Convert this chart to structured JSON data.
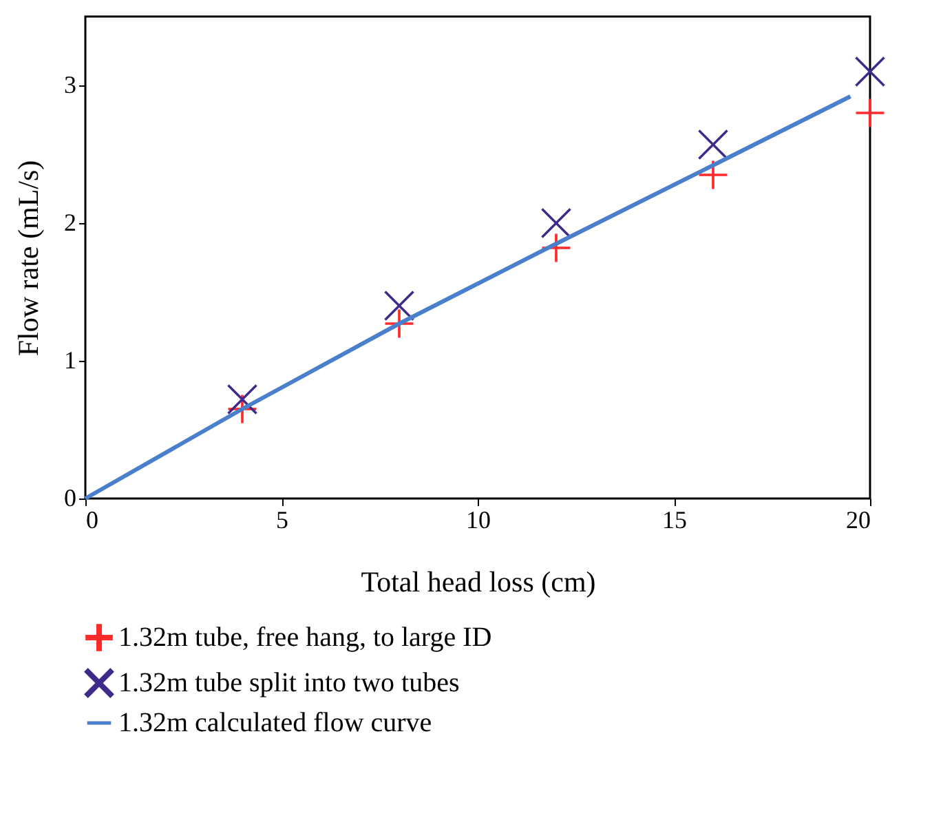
{
  "chart_data": {
    "type": "scatter",
    "xlabel": "Total head loss (cm)",
    "ylabel": "Flow rate (mL/s)",
    "xlim": [
      0,
      20
    ],
    "ylim": [
      0,
      3.5
    ],
    "xticks": [
      0,
      5,
      10,
      15,
      20
    ],
    "yticks": [
      0,
      1,
      2,
      3
    ],
    "grid": false,
    "legend": "bottom",
    "x": [
      4,
      8,
      12,
      16,
      20
    ],
    "series": [
      {
        "name": "1.32m tube, free hang, to large ID",
        "color": "#ff2a2a",
        "values": [
          0.65,
          1.27,
          1.82,
          2.35,
          2.8
        ]
      },
      {
        "name": "1.32m tube split into two tubes",
        "color": "#3f2a8c",
        "marker": "cross",
        "values": [
          0.72,
          1.4,
          2.0,
          2.57,
          3.1
        ]
      },
      {
        "name": "1.32m calculated flow curve",
        "color": "#4a7fcb",
        "type": "line",
        "line_style": "solid",
        "x": [
          0,
          4,
          8,
          12,
          16,
          19.5
        ],
        "values": [
          0,
          0.65,
          1.27,
          1.85,
          2.42,
          2.92
        ]
      }
    ]
  }
}
